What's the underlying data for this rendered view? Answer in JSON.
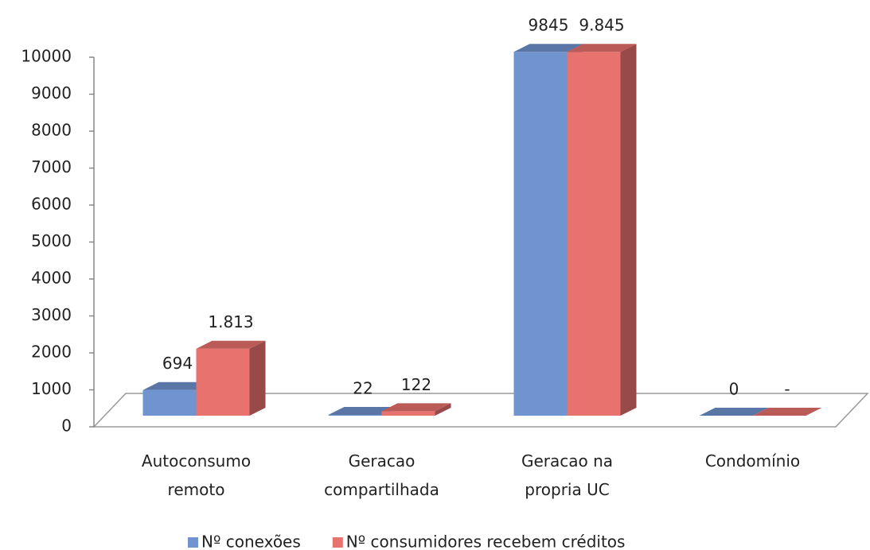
{
  "chart_data": {
    "type": "bar3d",
    "categories": [
      "Autoconsumo remoto",
      "Geracao compartilhada",
      "Geracao na propria UC",
      "Condomínio"
    ],
    "series": [
      {
        "name": "Nº conexões",
        "color": "#7094d0",
        "values": [
          694,
          22,
          9845,
          0
        ]
      },
      {
        "name": "Nº consumidores recebem créditos",
        "color": "#e8726e",
        "values": [
          1813,
          122,
          9845,
          0
        ],
        "value_labels": [
          "1.813",
          "122",
          "9.845",
          "-"
        ]
      }
    ],
    "ylim": [
      0,
      10000
    ],
    "yticks": [
      0,
      1000,
      2000,
      3000,
      4000,
      5000,
      6000,
      7000,
      8000,
      9000,
      10000
    ],
    "legend": "bottom"
  }
}
